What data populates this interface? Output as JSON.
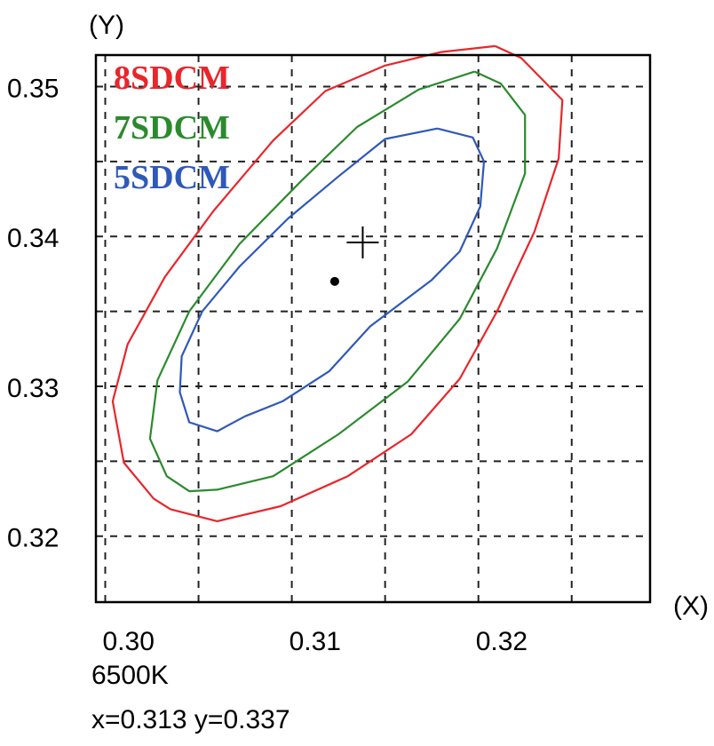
{
  "chart_data": {
    "type": "line",
    "xlabel": "(X)",
    "ylabel": "(Y)",
    "xlim": [
      0.2995,
      0.3292
    ],
    "ylim": [
      0.3156,
      0.3521
    ],
    "x_ticks": [
      "0.30",
      "0.31",
      "0.32"
    ],
    "x_tick_values": [
      0.3,
      0.31,
      0.32
    ],
    "y_ticks": [
      "0.35",
      "0.34",
      "0.33",
      "0.32"
    ],
    "y_tick_values": [
      0.35,
      0.34,
      0.33,
      0.32
    ],
    "grid": true,
    "legend_position": "top-left",
    "annotation_lines": [
      "6500K",
      "x=0.313   y=0.337"
    ],
    "series": [
      {
        "name": "8SDCM",
        "color": "#e8262b",
        "x": [
          0.3209,
          0.3223,
          0.3245,
          0.3243,
          0.323,
          0.321,
          0.319,
          0.3164,
          0.313,
          0.3094,
          0.306,
          0.3035,
          0.3026,
          0.301,
          0.3004,
          0.3012,
          0.3032,
          0.3058,
          0.309,
          0.3118,
          0.315,
          0.318,
          0.3209
        ],
        "y": [
          0.3527,
          0.3519,
          0.3491,
          0.3452,
          0.3403,
          0.335,
          0.3305,
          0.3268,
          0.324,
          0.322,
          0.321,
          0.3218,
          0.3225,
          0.3249,
          0.329,
          0.3328,
          0.3373,
          0.3417,
          0.3464,
          0.3497,
          0.3514,
          0.3523,
          0.3527
        ]
      },
      {
        "name": "7SDCM",
        "color": "#2c8a2e",
        "x": [
          0.3198,
          0.3212,
          0.3225,
          0.3225,
          0.321,
          0.319,
          0.3162,
          0.3125,
          0.309,
          0.306,
          0.3045,
          0.3033,
          0.3024,
          0.3028,
          0.3045,
          0.3072,
          0.3105,
          0.3135,
          0.3168,
          0.3198
        ],
        "y": [
          0.351,
          0.3502,
          0.3481,
          0.3442,
          0.3392,
          0.3345,
          0.3303,
          0.3268,
          0.324,
          0.3231,
          0.323,
          0.324,
          0.3265,
          0.3304,
          0.335,
          0.3395,
          0.3437,
          0.3473,
          0.3498,
          0.351
        ]
      },
      {
        "name": "5SDCM",
        "color": "#2f59b8",
        "x": [
          0.3178,
          0.3197,
          0.3203,
          0.3201,
          0.319,
          0.3175,
          0.3142,
          0.312,
          0.3095,
          0.3075,
          0.306,
          0.3045,
          0.304,
          0.3041,
          0.3052,
          0.3072,
          0.3098,
          0.3125,
          0.315,
          0.3178
        ],
        "y": [
          0.3472,
          0.3466,
          0.345,
          0.342,
          0.339,
          0.3371,
          0.334,
          0.331,
          0.329,
          0.328,
          0.327,
          0.3276,
          0.3296,
          0.332,
          0.335,
          0.338,
          0.3412,
          0.344,
          0.3465,
          0.3472
        ]
      }
    ],
    "points": [
      {
        "marker": "dot",
        "x": 0.3123,
        "y": 0.337
      },
      {
        "marker": "cross",
        "x": 0.3138,
        "y": 0.3396
      }
    ]
  }
}
